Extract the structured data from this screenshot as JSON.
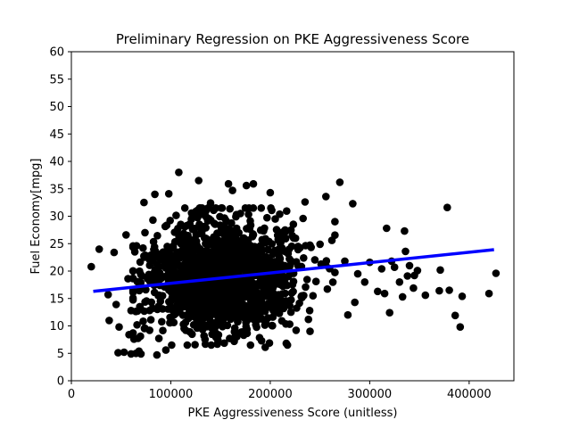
{
  "chart_data": {
    "type": "scatter",
    "title": "Preliminary Regression on PKE Aggressiveness Score",
    "xlabel": "PKE Aggressiveness Score (unitless)",
    "ylabel": "Fuel Economy[mpg]",
    "xlim": [
      0,
      445000
    ],
    "ylim": [
      0,
      60
    ],
    "xticks": [
      0,
      100000,
      200000,
      300000,
      400000
    ],
    "xtick_labels": [
      "0",
      "100000",
      "200000",
      "300000",
      "400000"
    ],
    "yticks": [
      0,
      5,
      10,
      15,
      20,
      25,
      30,
      35,
      40,
      45,
      50,
      55,
      60
    ],
    "ytick_labels": [
      "0",
      "5",
      "10",
      "15",
      "20",
      "25",
      "30",
      "35",
      "40",
      "45",
      "50",
      "55",
      "60"
    ],
    "grid": false,
    "marker_color": "#000000",
    "line_color": "#0000ff",
    "regression_line": {
      "x": [
        22000,
        425000
      ],
      "y": [
        16.3,
        23.9
      ]
    },
    "cluster": {
      "x_center": 150000,
      "x_spread": 38000,
      "y_center": 19.0,
      "y_spread": 5.2,
      "count": 1500
    },
    "points": [
      [
        20000,
        20.8
      ],
      [
        28000,
        24.0
      ],
      [
        37000,
        15.7
      ],
      [
        38000,
        11.0
      ],
      [
        43000,
        23.4
      ],
      [
        45000,
        13.9
      ],
      [
        47000,
        5.1
      ],
      [
        48000,
        9.8
      ],
      [
        53000,
        5.2
      ],
      [
        55000,
        26.6
      ],
      [
        57000,
        18.6
      ],
      [
        58000,
        8.4
      ],
      [
        60000,
        4.9
      ],
      [
        60000,
        12.8
      ],
      [
        62000,
        20.0
      ],
      [
        63000,
        7.6
      ],
      [
        65000,
        5.0
      ],
      [
        66000,
        10.2
      ],
      [
        68000,
        5.4
      ],
      [
        70000,
        4.9
      ],
      [
        71000,
        19.1
      ],
      [
        72000,
        24.2
      ],
      [
        73000,
        32.5
      ],
      [
        74000,
        27.0
      ],
      [
        80000,
        22.9
      ],
      [
        82000,
        29.3
      ],
      [
        84000,
        34.0
      ],
      [
        86000,
        4.7
      ],
      [
        88000,
        7.7
      ],
      [
        95000,
        5.6
      ],
      [
        98000,
        34.1
      ],
      [
        108000,
        38.0
      ],
      [
        110000,
        28.5
      ],
      [
        128000,
        36.5
      ],
      [
        140000,
        32.4
      ],
      [
        156000,
        29.0
      ],
      [
        158000,
        35.9
      ],
      [
        162000,
        34.7
      ],
      [
        170000,
        30.5
      ],
      [
        176000,
        35.6
      ],
      [
        183000,
        35.9
      ],
      [
        200000,
        34.3
      ],
      [
        205000,
        29.5
      ],
      [
        195000,
        6.1
      ],
      [
        215000,
        27.5
      ],
      [
        226000,
        9.2
      ],
      [
        233000,
        29.6
      ],
      [
        235000,
        32.6
      ],
      [
        240000,
        9.0
      ],
      [
        243000,
        15.5
      ],
      [
        250000,
        24.9
      ],
      [
        256000,
        33.6
      ],
      [
        262000,
        25.6
      ],
      [
        270000,
        36.2
      ],
      [
        275000,
        21.8
      ],
      [
        278000,
        12.0
      ],
      [
        283000,
        32.3
      ],
      [
        285000,
        14.3
      ],
      [
        288000,
        19.5
      ],
      [
        295000,
        18.0
      ],
      [
        300000,
        21.6
      ],
      [
        308000,
        16.3
      ],
      [
        312000,
        20.4
      ],
      [
        315000,
        15.9
      ],
      [
        317000,
        27.8
      ],
      [
        320000,
        12.4
      ],
      [
        322000,
        21.8
      ],
      [
        325000,
        20.7
      ],
      [
        330000,
        18.0
      ],
      [
        333000,
        15.3
      ],
      [
        335000,
        27.3
      ],
      [
        336000,
        23.6
      ],
      [
        338000,
        19.1
      ],
      [
        340000,
        21.0
      ],
      [
        344000,
        16.9
      ],
      [
        345000,
        19.2
      ],
      [
        348000,
        20.1
      ],
      [
        356000,
        15.6
      ],
      [
        370000,
        16.4
      ],
      [
        371000,
        20.2
      ],
      [
        378000,
        31.6
      ],
      [
        380000,
        16.5
      ],
      [
        386000,
        11.9
      ],
      [
        391000,
        9.8
      ],
      [
        393000,
        15.4
      ],
      [
        420000,
        15.9
      ],
      [
        427000,
        19.6
      ]
    ]
  }
}
